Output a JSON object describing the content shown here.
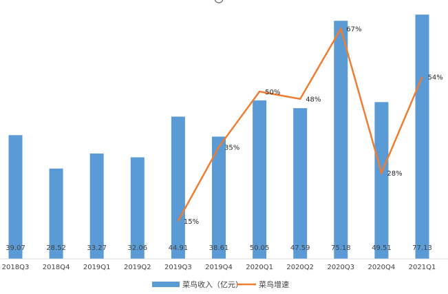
{
  "chart_data": {
    "type": "bar",
    "title": "",
    "xlabel": "",
    "ylabel": "",
    "categories": [
      "2018Q3",
      "2018Q4",
      "2019Q1",
      "2019Q2",
      "2019Q3",
      "2019Q4",
      "2020Q1",
      "2020Q2",
      "2020Q3",
      "2020Q4",
      "2021Q1"
    ],
    "series": [
      {
        "name": "菜鸟收入（亿元）",
        "type": "bar",
        "color": "#5B9BD5",
        "values": [
          39.07,
          28.52,
          33.27,
          32.06,
          44.91,
          38.61,
          50.05,
          47.59,
          75.18,
          49.51,
          77.13
        ],
        "labels": [
          "39.07",
          "28.52",
          "33.27",
          "32.06",
          "44.91",
          "38.61",
          "50.05",
          "47.59",
          "75.18",
          "49.51",
          "77.13"
        ]
      },
      {
        "name": "菜鸟增速",
        "type": "line",
        "color": "#ED7D31",
        "values": [
          null,
          null,
          null,
          null,
          15,
          35,
          50,
          48,
          67,
          28,
          54
        ],
        "labels": [
          "",
          "",
          "",
          "",
          "15%",
          "35%",
          "50%",
          "48%",
          "67%",
          "28%",
          "54%"
        ]
      }
    ],
    "bar_ylim": [
      0,
      80
    ],
    "line_ylim": [
      0,
      70
    ],
    "legend_position": "bottom"
  }
}
